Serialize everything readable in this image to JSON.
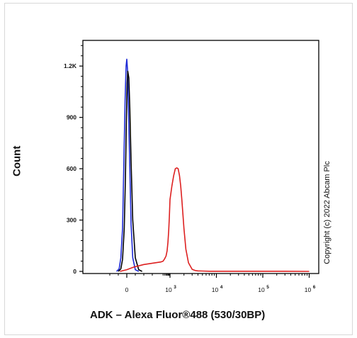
{
  "chart_data": {
    "type": "line",
    "ylabel": "Count",
    "xlabel": "ADK – Alexa Fluor®488 (530/30BP)",
    "watermark": "Copyright (c) 2022 Abcam Plc",
    "y_ticks": [
      "0",
      "300",
      "600",
      "900",
      "1.2K"
    ],
    "y_tick_values": [
      0,
      300,
      600,
      900,
      1200
    ],
    "x_ticks": [
      {
        "label": "0",
        "exp": ""
      },
      {
        "label": "10",
        "exp": "3"
      },
      {
        "label": "10",
        "exp": "4"
      },
      {
        "label": "10",
        "exp": "5"
      },
      {
        "label": "10",
        "exp": "6"
      }
    ],
    "ylim": [
      0,
      1350
    ],
    "series": [
      {
        "color": "#1f2bd6",
        "x": [
          -60,
          -45,
          -35,
          -25,
          -18,
          -10,
          -4,
          0,
          4,
          10,
          18,
          25,
          35,
          50,
          70
        ],
        "y": [
          0,
          15,
          80,
          250,
          600,
          1000,
          1200,
          1240,
          1180,
          950,
          600,
          280,
          80,
          10,
          0
        ]
      },
      {
        "color": "#000000",
        "x": [
          -50,
          -35,
          -25,
          -15,
          -8,
          -2,
          2,
          6,
          12,
          18,
          25,
          35,
          50,
          70,
          90
        ],
        "y": [
          0,
          15,
          70,
          250,
          550,
          900,
          1100,
          1170,
          1130,
          950,
          650,
          300,
          80,
          10,
          0
        ]
      },
      {
        "color": "#dd2020",
        "x": [
          -40,
          0,
          40,
          100,
          200,
          300,
          400,
          500,
          600,
          700,
          800,
          900,
          1000,
          1100,
          1200,
          1300,
          1400,
          1500,
          1600,
          1700,
          1800,
          1900,
          2000,
          2200,
          2500,
          3000,
          3500,
          4000,
          5000,
          7000,
          10000,
          100000,
          300000,
          1000000
        ],
        "y": [
          0,
          10,
          25,
          40,
          55,
          60,
          75,
          90,
          120,
          170,
          240,
          320,
          420,
          500,
          560,
          600,
          605,
          600,
          560,
          500,
          420,
          330,
          250,
          130,
          50,
          12,
          5,
          3,
          2,
          1,
          1,
          1,
          1,
          0
        ]
      }
    ]
  }
}
